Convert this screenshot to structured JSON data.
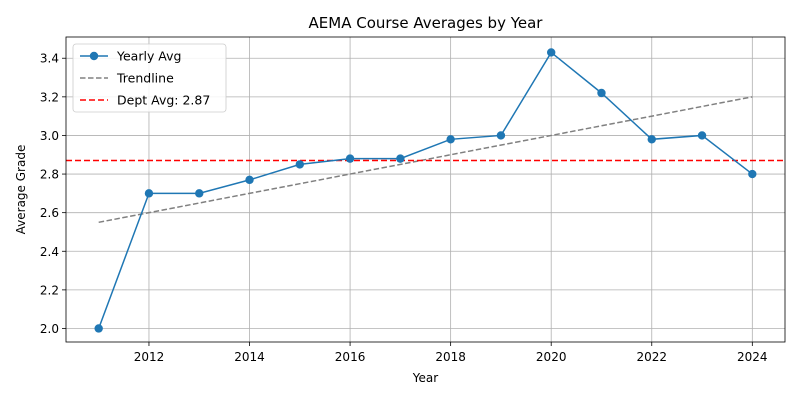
{
  "chart_data": {
    "type": "line",
    "title": "AEMA Course Averages by Year",
    "xlabel": "Year",
    "ylabel": "Average Grade",
    "xlim": [
      2010.35,
      2024.65
    ],
    "ylim": [
      1.93,
      3.51
    ],
    "xticks": [
      2012,
      2014,
      2016,
      2018,
      2020,
      2022,
      2024
    ],
    "yticks": [
      2.0,
      2.2,
      2.4,
      2.6,
      2.8,
      3.0,
      3.2,
      3.4
    ],
    "grid": true,
    "legend_position": "top-left",
    "series": [
      {
        "name": "Yearly Avg",
        "style": "solid-markers",
        "color": "#1f77b4",
        "x": [
          2011,
          2012,
          2013,
          2014,
          2015,
          2016,
          2017,
          2018,
          2019,
          2020,
          2021,
          2022,
          2023,
          2024
        ],
        "y": [
          2.0,
          2.7,
          2.7,
          2.77,
          2.85,
          2.88,
          2.88,
          2.98,
          3.0,
          3.43,
          3.22,
          2.98,
          3.0,
          2.8
        ]
      },
      {
        "name": "Trendline",
        "style": "dashed",
        "color": "#808080",
        "x": [
          2011,
          2024
        ],
        "y": [
          2.55,
          3.2
        ]
      },
      {
        "name": "Dept Avg: 2.87",
        "style": "dashed-horizontal",
        "color": "#ff0000",
        "y": 2.87
      }
    ]
  }
}
